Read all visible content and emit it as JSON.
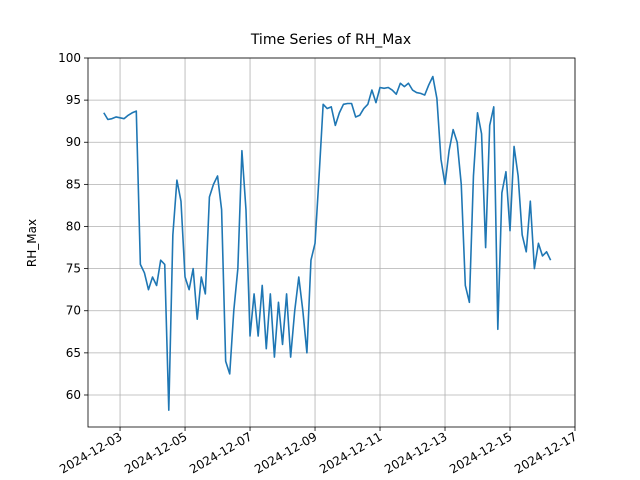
{
  "chart_data": {
    "type": "line",
    "title": "Time Series of RH_Max",
    "ylabel": "RH_Max",
    "x": [
      "2024-12-02T12:00",
      "2024-12-02T15:00",
      "2024-12-02T18:00",
      "2024-12-02T21:00",
      "2024-12-03T00:00",
      "2024-12-03T03:00",
      "2024-12-03T06:00",
      "2024-12-03T09:00",
      "2024-12-03T12:00",
      "2024-12-03T15:00",
      "2024-12-03T18:00",
      "2024-12-03T21:00",
      "2024-12-04T00:00",
      "2024-12-04T03:00",
      "2024-12-04T06:00",
      "2024-12-04T09:00",
      "2024-12-04T12:00",
      "2024-12-04T15:00",
      "2024-12-04T18:00",
      "2024-12-04T21:00",
      "2024-12-05T00:00",
      "2024-12-05T03:00",
      "2024-12-05T06:00",
      "2024-12-05T09:00",
      "2024-12-05T12:00",
      "2024-12-05T15:00",
      "2024-12-05T18:00",
      "2024-12-05T21:00",
      "2024-12-06T00:00",
      "2024-12-06T03:00",
      "2024-12-06T06:00",
      "2024-12-06T09:00",
      "2024-12-06T12:00",
      "2024-12-06T15:00",
      "2024-12-06T18:00",
      "2024-12-06T21:00",
      "2024-12-07T00:00",
      "2024-12-07T03:00",
      "2024-12-07T06:00",
      "2024-12-07T09:00",
      "2024-12-07T12:00",
      "2024-12-07T15:00",
      "2024-12-07T18:00",
      "2024-12-07T21:00",
      "2024-12-08T00:00",
      "2024-12-08T03:00",
      "2024-12-08T06:00",
      "2024-12-08T09:00",
      "2024-12-08T12:00",
      "2024-12-08T15:00",
      "2024-12-08T18:00",
      "2024-12-08T21:00",
      "2024-12-09T00:00",
      "2024-12-09T03:00",
      "2024-12-09T06:00",
      "2024-12-09T09:00",
      "2024-12-09T12:00",
      "2024-12-09T15:00",
      "2024-12-09T18:00",
      "2024-12-09T21:00",
      "2024-12-10T00:00",
      "2024-12-10T03:00",
      "2024-12-10T06:00",
      "2024-12-10T09:00",
      "2024-12-10T12:00",
      "2024-12-10T15:00",
      "2024-12-10T18:00",
      "2024-12-10T21:00",
      "2024-12-11T00:00",
      "2024-12-11T03:00",
      "2024-12-11T06:00",
      "2024-12-11T09:00",
      "2024-12-11T12:00",
      "2024-12-11T15:00",
      "2024-12-11T18:00",
      "2024-12-11T21:00",
      "2024-12-12T00:00",
      "2024-12-12T03:00",
      "2024-12-12T06:00",
      "2024-12-12T09:00",
      "2024-12-12T12:00",
      "2024-12-12T15:00",
      "2024-12-12T18:00",
      "2024-12-12T21:00",
      "2024-12-13T00:00",
      "2024-12-13T03:00",
      "2024-12-13T06:00",
      "2024-12-13T09:00",
      "2024-12-13T12:00",
      "2024-12-13T15:00",
      "2024-12-13T18:00",
      "2024-12-13T21:00",
      "2024-12-14T00:00",
      "2024-12-14T03:00",
      "2024-12-14T06:00",
      "2024-12-14T09:00",
      "2024-12-14T12:00",
      "2024-12-14T15:00",
      "2024-12-14T18:00",
      "2024-12-14T21:00",
      "2024-12-15T00:00",
      "2024-12-15T03:00",
      "2024-12-15T06:00",
      "2024-12-15T09:00",
      "2024-12-15T12:00",
      "2024-12-15T15:00",
      "2024-12-15T18:00",
      "2024-12-15T21:00",
      "2024-12-16T00:00",
      "2024-12-16T03:00",
      "2024-12-16T06:00"
    ],
    "series": [
      {
        "name": "RH_Max",
        "color": "#1f77b4",
        "values": [
          93.5,
          92.7,
          92.8,
          93.0,
          92.9,
          92.8,
          93.2,
          93.5,
          93.7,
          75.5,
          74.5,
          72.5,
          74,
          73,
          76,
          75.5,
          58.2,
          79,
          85.5,
          83,
          74,
          72.5,
          75,
          69,
          74,
          72,
          83.5,
          85,
          86,
          82,
          64,
          62.5,
          70,
          75,
          89,
          82,
          67,
          72,
          67,
          73,
          65.5,
          72,
          64.5,
          71,
          66,
          72,
          64.5,
          70,
          74,
          70,
          65,
          76,
          78,
          86,
          94.5,
          94,
          94.2,
          92,
          93.5,
          94.5,
          94.6,
          94.6,
          93,
          93.2,
          94,
          94.5,
          96.2,
          94.7,
          96.5,
          96.4,
          96.5,
          96.2,
          95.7,
          97,
          96.6,
          97,
          96.2,
          95.9,
          95.8,
          95.6,
          96.8,
          97.8,
          95.2,
          88,
          85,
          89,
          91.5,
          90,
          85,
          73,
          71,
          86,
          93.5,
          91,
          77.5,
          92,
          94.2,
          67.8,
          84,
          86.5,
          79.5,
          89.5,
          86,
          79,
          77,
          83,
          75,
          78,
          76.5,
          77,
          76
        ]
      }
    ],
    "xlim": [
      "2024-12-02T00:20",
      "2024-12-17T00:00"
    ],
    "xticks": [
      "2024-12-03",
      "2024-12-05",
      "2024-12-07",
      "2024-12-09",
      "2024-12-11",
      "2024-12-13",
      "2024-12-15",
      "2024-12-17"
    ],
    "ylim": [
      56.2,
      100
    ],
    "yticks": [
      60,
      65,
      70,
      75,
      80,
      85,
      90,
      95,
      100
    ],
    "grid": true
  }
}
